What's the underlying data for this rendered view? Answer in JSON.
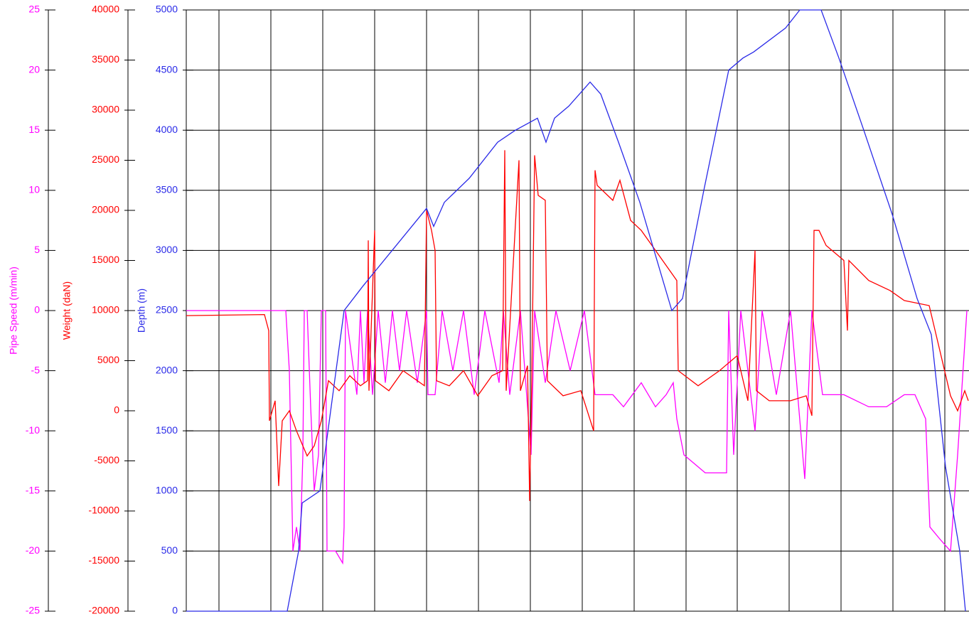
{
  "chart_data": {
    "type": "line",
    "xlim": [
      0,
      1101
    ],
    "xticks": [
      46,
      119,
      192,
      265,
      338,
      411,
      484,
      557,
      630,
      703,
      775,
      848,
      921,
      994,
      1067
    ],
    "ylabel": "Depth  (m)",
    "ylim": [
      0,
      5000
    ],
    "yticks": [
      0,
      500,
      1000,
      1500,
      2000,
      2500,
      3000,
      3500,
      4000,
      4500,
      5000
    ],
    "ycolor": "#2a2ae8",
    "y2label": "Weight  (daN)",
    "y2lim": [
      -20000,
      40000
    ],
    "y2ticks": [
      -20000,
      -15000,
      -10000,
      -5000,
      0,
      5000,
      10000,
      15000,
      20000,
      25000,
      30000,
      35000,
      40000
    ],
    "y2color": "#ff0000",
    "y3label": "Pipe Speed  (m/min)",
    "y3lim": [
      -25,
      25
    ],
    "y3ticks": [
      -25,
      -20,
      -15,
      -10,
      -5,
      0,
      5,
      10,
      15,
      20,
      25
    ],
    "y3color": "#ff00ff",
    "grid": true,
    "series": [
      {
        "axis": "y3",
        "color": "#ff00ff",
        "x": [
          0,
          140,
          145,
          150,
          155,
          160,
          164,
          166,
          170,
          175,
          180,
          186,
          190,
          196,
          198,
          210,
          220,
          222,
          224,
          240,
          245,
          250,
          255,
          262,
          270,
          280,
          290,
          300,
          310,
          325,
          338,
          340,
          350,
          360,
          375,
          390,
          405,
          420,
          440,
          446,
          455,
          470,
          485,
          490,
          505,
          520,
          540,
          560,
          575,
          600,
          615,
          640,
          660,
          675,
          685,
          690,
          700,
          730,
          760,
          763,
          770,
          780,
          800,
          810,
          830,
          850,
          870,
          880,
          895,
          925,
          960,
          985,
          1010,
          1025,
          1040,
          1046,
          1060,
          1075,
          1085,
          1098
        ],
        "values": [
          0,
          0,
          -5,
          -20,
          -18,
          -20,
          -12,
          0,
          0,
          -8,
          -15,
          -12,
          0,
          0,
          -20,
          -20,
          -21,
          -18,
          0,
          -7,
          0,
          -6,
          0,
          -7,
          0,
          -6,
          0,
          -5,
          0,
          -6,
          0,
          -7,
          -7,
          0,
          -5,
          0,
          -7,
          0,
          -6,
          0,
          -7,
          0,
          -12,
          0,
          -6,
          0,
          -5,
          0,
          -7,
          -7,
          -8,
          -6,
          -8,
          -7,
          -6,
          -9,
          -12,
          -13.5,
          -13.5,
          0,
          -12,
          0,
          -10,
          0,
          -7,
          0,
          -14,
          0,
          -7,
          -7,
          -8,
          -8,
          -7,
          -7,
          -9,
          -18,
          -19,
          -20,
          -12,
          0
        ]
      },
      {
        "axis": "y2",
        "color": "#ff0000",
        "x": [
          0,
          110,
          116,
          117,
          125,
          130,
          135,
          145,
          155,
          170,
          180,
          190,
          200,
          215,
          230,
          245,
          255,
          256,
          257,
          265,
          266,
          285,
          305,
          335,
          338,
          345,
          350,
          352,
          370,
          390,
          410,
          430,
          445,
          448,
          450,
          468,
          470,
          480,
          483,
          486,
          490,
          495,
          505,
          508,
          530,
          555,
          573,
          575,
          578,
          600,
          610,
          625,
          640,
          665,
          690,
          692,
          720,
          750,
          775,
          790,
          800,
          802,
          820,
          850,
          872,
          880,
          883,
          890,
          900,
          925,
          930,
          932,
          960,
          990,
          1010,
          1045,
          1060,
          1075,
          1085,
          1095,
          1100
        ],
        "values": [
          9500,
          9600,
          8000,
          -1000,
          1000,
          -7500,
          -1000,
          0,
          -2000,
          -4500,
          -3500,
          -1000,
          3000,
          2000,
          3500,
          2500,
          3000,
          17000,
          2000,
          18000,
          3000,
          2000,
          4000,
          2500,
          20000,
          18000,
          16000,
          3000,
          2500,
          4000,
          1500,
          3500,
          4000,
          26000,
          2000,
          25000,
          2000,
          4500,
          -9000,
          3000,
          25500,
          21500,
          21000,
          3000,
          1500,
          2000,
          -2000,
          24000,
          22500,
          21000,
          23000,
          19000,
          18000,
          15500,
          13000,
          4000,
          2500,
          4000,
          5500,
          1000,
          16000,
          2000,
          1000,
          1000,
          1500,
          -500,
          18000,
          18000,
          16500,
          15000,
          8000,
          15000,
          13000,
          12000,
          11000,
          10500,
          6000,
          1500,
          0,
          2000,
          1000
        ]
      },
      {
        "axis": "y",
        "color": "#2a2ae8",
        "x": [
          0,
          142,
          158,
          163,
          188,
          222,
          248,
          338,
          348,
          363,
          398,
          438,
          463,
          494,
          506,
          518,
          538,
          568,
          583,
          608,
          638,
          683,
          698,
          728,
          763,
          783,
          798,
          843,
          863,
          893,
          918,
          953,
          993,
          1028,
          1048,
          1068,
          1088,
          1096
        ],
        "values": [
          0,
          0,
          500,
          900,
          1000,
          2500,
          2700,
          3350,
          3200,
          3400,
          3600,
          3900,
          4000,
          4100,
          3900,
          4100,
          4200,
          4400,
          4300,
          3900,
          3400,
          2500,
          2600,
          3500,
          4500,
          4600,
          4650,
          4850,
          5000,
          5000,
          4600,
          4000,
          3300,
          2600,
          2300,
          1200,
          500,
          0
        ]
      }
    ]
  }
}
